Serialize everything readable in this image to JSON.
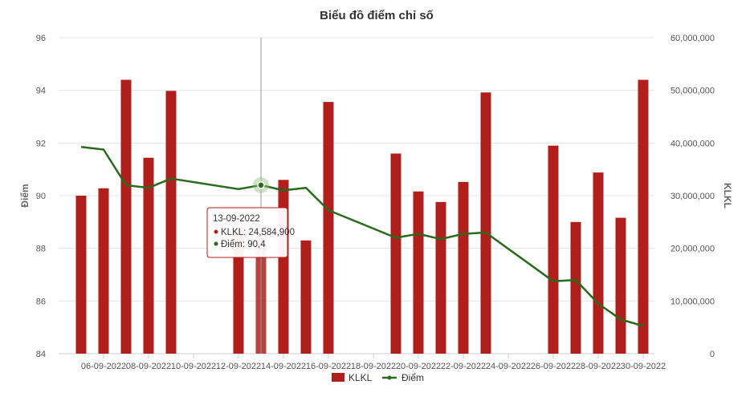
{
  "chart_data": {
    "type": "bar",
    "title": "Biểu đồ điểm chỉ số",
    "ylabel_left": "Điểm",
    "ylabel_right": "KLKL",
    "ylim_left": [
      84,
      96
    ],
    "ylim_right": [
      0,
      60000000
    ],
    "left_ticks": [
      "84",
      "86",
      "88",
      "90",
      "92",
      "94",
      "96"
    ],
    "right_ticks": [
      "0",
      "10,000,000",
      "20,000,000",
      "30,000,000",
      "40,000,000",
      "50,000,000",
      "60,000,000"
    ],
    "x_tick_labels": [
      "06-09-2022",
      "08-09-2022",
      "10-09-2022",
      "12-09-2022",
      "14-09-2022",
      "16-09-2022",
      "18-09-2022",
      "20-09-2022",
      "22-09-2022",
      "24-09-2022",
      "26-09-2022",
      "28-09-2022",
      "30-09-2022"
    ],
    "dates": [
      "05-09-2022",
      "06-09-2022",
      "07-09-2022",
      "08-09-2022",
      "09-09-2022",
      "12-09-2022",
      "13-09-2022",
      "14-09-2022",
      "15-09-2022",
      "16-09-2022",
      "19-09-2022",
      "20-09-2022",
      "21-09-2022",
      "22-09-2022",
      "23-09-2022",
      "26-09-2022",
      "27-09-2022",
      "28-09-2022",
      "29-09-2022",
      "30-09-2022"
    ],
    "series": [
      {
        "name": "KLKL",
        "type": "bar",
        "axis": "right",
        "color": "#b01f1c",
        "values": [
          30000000,
          31400000,
          52000000,
          37200000,
          49900000,
          24000000,
          24584900,
          33000000,
          21500000,
          47800000,
          38000000,
          30800000,
          28800000,
          32600000,
          49600000,
          39500000,
          25000000,
          34400000,
          25800000,
          52000000
        ]
      },
      {
        "name": "Điểm",
        "type": "line",
        "axis": "left",
        "color": "#2a6b1b",
        "values": [
          91.85,
          91.75,
          90.4,
          90.3,
          90.65,
          90.25,
          90.4,
          90.2,
          90.3,
          89.45,
          88.4,
          88.55,
          88.35,
          88.55,
          88.6,
          86.75,
          86.8,
          85.9,
          85.3,
          85.05
        ]
      }
    ],
    "legend_position": "bottom-center",
    "grid": true,
    "tooltip": {
      "date": "13-09-2022",
      "klkl_text": "KLKL: 24,584,900",
      "diem_text": "Điểm: 90,4",
      "index": 6
    }
  }
}
